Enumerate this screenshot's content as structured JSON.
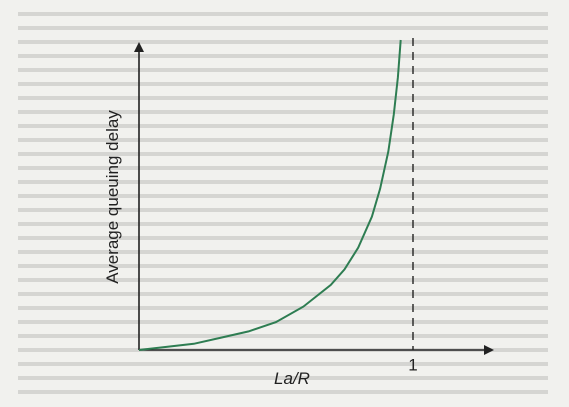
{
  "chart_data": {
    "type": "line",
    "title": "",
    "xlabel": "La/R",
    "ylabel": "Average queuing delay",
    "xlim": [
      0,
      1.1
    ],
    "ylim": [
      0,
      1
    ],
    "xticks": [
      {
        "value": 1,
        "label": "1"
      }
    ],
    "asymptote_x": 1,
    "grid": false,
    "legend": "none",
    "colors": {
      "curve": "#2e7d52",
      "axis": "#222222",
      "asymptote": "#222222"
    },
    "series": [
      {
        "name": "",
        "x": [
          0.0,
          0.1,
          0.2,
          0.3,
          0.4,
          0.5,
          0.6,
          0.7,
          0.75,
          0.8,
          0.85,
          0.88,
          0.91,
          0.93,
          0.945,
          0.955
        ],
        "y": [
          0.0,
          0.01,
          0.02,
          0.04,
          0.06,
          0.09,
          0.14,
          0.21,
          0.26,
          0.33,
          0.43,
          0.52,
          0.64,
          0.76,
          0.88,
          1.0
        ]
      }
    ]
  }
}
